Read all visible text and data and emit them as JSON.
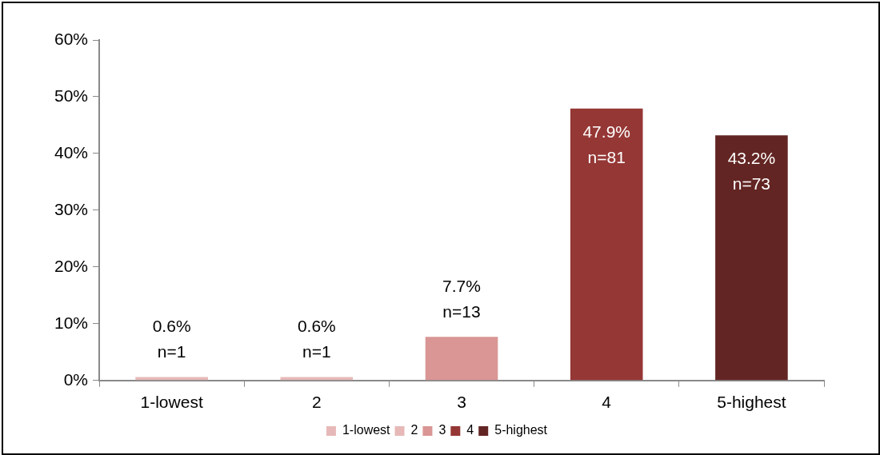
{
  "chart_data": {
    "type": "bar",
    "categories": [
      "1-lowest",
      "2",
      "3",
      "4",
      "5-highest"
    ],
    "series": [
      {
        "name": "1-lowest",
        "color": "#e6b9b8",
        "values": [
          0.6,
          null,
          null,
          null,
          null
        ],
        "value_labels": [
          "0.6%\nn=1",
          null,
          null,
          null,
          null
        ]
      },
      {
        "name": "2",
        "color": "#e6b9b8",
        "values": [
          null,
          0.6,
          null,
          null,
          null
        ],
        "value_labels": [
          null,
          "0.6%\nn=1",
          null,
          null,
          null
        ]
      },
      {
        "name": "3",
        "color": "#d99694",
        "values": [
          null,
          null,
          7.7,
          null,
          null
        ],
        "value_labels": [
          null,
          null,
          "7.7%\nn=13",
          null,
          null
        ]
      },
      {
        "name": "4",
        "color": "#953735",
        "values": [
          null,
          null,
          null,
          47.9,
          null
        ],
        "value_labels": [
          null,
          null,
          null,
          "47.9%\nn=81",
          null
        ]
      },
      {
        "name": "5-highest",
        "color": "#632523",
        "values": [
          null,
          null,
          null,
          null,
          43.2
        ],
        "value_labels": [
          null,
          null,
          null,
          null,
          "43.2%\nn=73"
        ]
      }
    ],
    "ylim": [
      0,
      60
    ],
    "yticks": [
      {
        "value": 0,
        "label": "0%"
      },
      {
        "value": 10,
        "label": "10%"
      },
      {
        "value": 20,
        "label": "20%"
      },
      {
        "value": 30,
        "label": "30%"
      },
      {
        "value": 40,
        "label": "40%"
      },
      {
        "value": 50,
        "label": "50%"
      },
      {
        "value": 60,
        "label": "60%"
      }
    ],
    "grid": false,
    "legend": "bottom"
  }
}
